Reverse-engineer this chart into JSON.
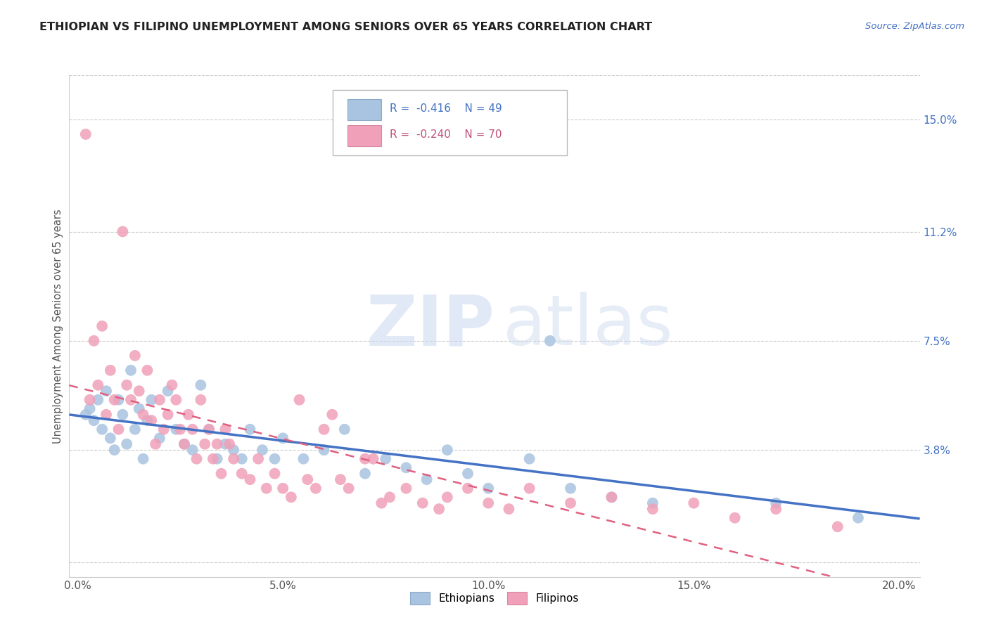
{
  "title": "ETHIOPIAN VS FILIPINO UNEMPLOYMENT AMONG SENIORS OVER 65 YEARS CORRELATION CHART",
  "source": "Source: ZipAtlas.com",
  "ylabel": "Unemployment Among Seniors over 65 years",
  "xlabel_ticks": [
    "0.0%",
    "5.0%",
    "10.0%",
    "15.0%",
    "20.0%"
  ],
  "xlabel_vals": [
    0.0,
    5.0,
    10.0,
    15.0,
    20.0
  ],
  "ylabel_ticks": [
    "",
    "3.8%",
    "7.5%",
    "11.2%",
    "15.0%"
  ],
  "ylabel_vals": [
    0.0,
    3.8,
    7.5,
    11.2,
    15.0
  ],
  "xlim": [
    -0.2,
    20.5
  ],
  "ylim": [
    -0.5,
    16.5
  ],
  "ethiopian_color": "#a8c4e0",
  "filipino_color": "#f0a0b8",
  "trendline_ethiopian_color": "#4472c4",
  "trendline_filipino_color": "#e06080",
  "ethiopian_R": "-0.416",
  "ethiopian_N": "49",
  "filipino_R": "-0.240",
  "filipino_N": "70",
  "ethiopian_points": [
    [
      0.2,
      5.0
    ],
    [
      0.3,
      5.2
    ],
    [
      0.4,
      4.8
    ],
    [
      0.5,
      5.5
    ],
    [
      0.6,
      4.5
    ],
    [
      0.7,
      5.8
    ],
    [
      0.8,
      4.2
    ],
    [
      0.9,
      3.8
    ],
    [
      1.0,
      5.5
    ],
    [
      1.1,
      5.0
    ],
    [
      1.2,
      4.0
    ],
    [
      1.3,
      6.5
    ],
    [
      1.4,
      4.5
    ],
    [
      1.5,
      5.2
    ],
    [
      1.6,
      3.5
    ],
    [
      1.7,
      4.8
    ],
    [
      1.8,
      5.5
    ],
    [
      2.0,
      4.2
    ],
    [
      2.2,
      5.8
    ],
    [
      2.4,
      4.5
    ],
    [
      2.6,
      4.0
    ],
    [
      2.8,
      3.8
    ],
    [
      3.0,
      6.0
    ],
    [
      3.2,
      4.5
    ],
    [
      3.4,
      3.5
    ],
    [
      3.6,
      4.0
    ],
    [
      3.8,
      3.8
    ],
    [
      4.0,
      3.5
    ],
    [
      4.2,
      4.5
    ],
    [
      4.5,
      3.8
    ],
    [
      4.8,
      3.5
    ],
    [
      5.0,
      4.2
    ],
    [
      5.5,
      3.5
    ],
    [
      6.0,
      3.8
    ],
    [
      6.5,
      4.5
    ],
    [
      7.0,
      3.0
    ],
    [
      7.5,
      3.5
    ],
    [
      8.0,
      3.2
    ],
    [
      8.5,
      2.8
    ],
    [
      9.0,
      3.8
    ],
    [
      9.5,
      3.0
    ],
    [
      10.0,
      2.5
    ],
    [
      11.0,
      3.5
    ],
    [
      11.5,
      7.5
    ],
    [
      12.0,
      2.5
    ],
    [
      13.0,
      2.2
    ],
    [
      14.0,
      2.0
    ],
    [
      17.0,
      2.0
    ],
    [
      19.0,
      1.5
    ]
  ],
  "filipino_points": [
    [
      0.2,
      14.5
    ],
    [
      0.3,
      5.5
    ],
    [
      0.4,
      7.5
    ],
    [
      0.5,
      6.0
    ],
    [
      0.6,
      8.0
    ],
    [
      0.7,
      5.0
    ],
    [
      0.8,
      6.5
    ],
    [
      0.9,
      5.5
    ],
    [
      1.0,
      4.5
    ],
    [
      1.1,
      11.2
    ],
    [
      1.2,
      6.0
    ],
    [
      1.3,
      5.5
    ],
    [
      1.4,
      7.0
    ],
    [
      1.5,
      5.8
    ],
    [
      1.6,
      5.0
    ],
    [
      1.7,
      6.5
    ],
    [
      1.8,
      4.8
    ],
    [
      1.9,
      4.0
    ],
    [
      2.0,
      5.5
    ],
    [
      2.1,
      4.5
    ],
    [
      2.2,
      5.0
    ],
    [
      2.3,
      6.0
    ],
    [
      2.4,
      5.5
    ],
    [
      2.5,
      4.5
    ],
    [
      2.6,
      4.0
    ],
    [
      2.7,
      5.0
    ],
    [
      2.8,
      4.5
    ],
    [
      2.9,
      3.5
    ],
    [
      3.0,
      5.5
    ],
    [
      3.1,
      4.0
    ],
    [
      3.2,
      4.5
    ],
    [
      3.3,
      3.5
    ],
    [
      3.4,
      4.0
    ],
    [
      3.5,
      3.0
    ],
    [
      3.6,
      4.5
    ],
    [
      3.7,
      4.0
    ],
    [
      3.8,
      3.5
    ],
    [
      4.0,
      3.0
    ],
    [
      4.2,
      2.8
    ],
    [
      4.4,
      3.5
    ],
    [
      4.6,
      2.5
    ],
    [
      4.8,
      3.0
    ],
    [
      5.0,
      2.5
    ],
    [
      5.2,
      2.2
    ],
    [
      5.4,
      5.5
    ],
    [
      5.6,
      2.8
    ],
    [
      5.8,
      2.5
    ],
    [
      6.0,
      4.5
    ],
    [
      6.2,
      5.0
    ],
    [
      6.4,
      2.8
    ],
    [
      6.6,
      2.5
    ],
    [
      7.0,
      3.5
    ],
    [
      7.2,
      3.5
    ],
    [
      7.4,
      2.0
    ],
    [
      7.6,
      2.2
    ],
    [
      8.0,
      2.5
    ],
    [
      8.4,
      2.0
    ],
    [
      8.8,
      1.8
    ],
    [
      9.0,
      2.2
    ],
    [
      9.5,
      2.5
    ],
    [
      10.0,
      2.0
    ],
    [
      10.5,
      1.8
    ],
    [
      11.0,
      2.5
    ],
    [
      12.0,
      2.0
    ],
    [
      13.0,
      2.2
    ],
    [
      14.0,
      1.8
    ],
    [
      15.0,
      2.0
    ],
    [
      16.0,
      1.5
    ],
    [
      17.0,
      1.8
    ],
    [
      18.5,
      1.2
    ]
  ]
}
